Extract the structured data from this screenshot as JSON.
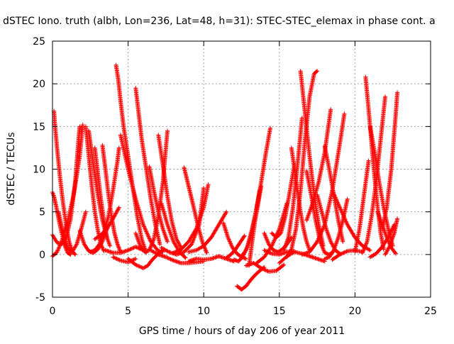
{
  "chart_data": {
    "type": "scatter",
    "title": "dSTEC Iono. truth (albh, Lon=236, Lat=48, h=31): STEC-STEC_elemax in phase cont. a",
    "xlabel": "GPS time / hours of day 206 of year 2011",
    "ylabel": "dSTEC  / TECUs",
    "xlim": [
      0,
      25
    ],
    "ylim": [
      -5,
      25
    ],
    "xticks": [
      0,
      5,
      10,
      15,
      20,
      25
    ],
    "yticks": [
      -5,
      0,
      5,
      10,
      15,
      20,
      25
    ],
    "grid": true,
    "marker": "+",
    "series_color": "#ff0000",
    "segments": [
      {
        "x": [
          0.0,
          0.1,
          0.25,
          0.4,
          0.6,
          0.8,
          1.0,
          1.2
        ],
        "y": [
          7.3,
          6.8,
          5.6,
          4.2,
          2.6,
          1.1,
          0.2,
          0.0
        ]
      },
      {
        "x": [
          0.0,
          0.3,
          0.6,
          0.9,
          1.2,
          1.5,
          1.7,
          1.8
        ],
        "y": [
          2.3,
          1.4,
          1.2,
          2.0,
          4.2,
          8.5,
          13.0,
          15.0
        ]
      },
      {
        "x": [
          0.1,
          0.15,
          0.3,
          0.5,
          0.7,
          0.9,
          1.1,
          1.3,
          1.5
        ],
        "y": [
          16.8,
          15.5,
          12.5,
          9.0,
          6.0,
          3.5,
          1.5,
          0.4,
          0.0
        ]
      },
      {
        "x": [
          0.0,
          0.3,
          0.6,
          1.0,
          1.4,
          1.8,
          2.0
        ],
        "y": [
          -0.2,
          0.3,
          1.5,
          3.8,
          7.0,
          11.5,
          15.2
        ]
      },
      {
        "x": [
          0.4,
          0.7,
          1.0,
          1.3,
          1.6,
          1.9,
          2.2
        ],
        "y": [
          5.0,
          2.5,
          0.8,
          0.3,
          1.2,
          3.0,
          5.0
        ]
      },
      {
        "x": [
          2.2,
          2.4,
          2.6,
          2.8,
          3.0,
          3.2,
          3.4
        ],
        "y": [
          15.0,
          11.5,
          8.0,
          5.0,
          2.8,
          1.2,
          0.4
        ]
      },
      {
        "x": [
          2.4,
          2.7,
          3.0,
          3.3,
          3.6,
          3.8
        ],
        "y": [
          14.5,
          10.5,
          7.0,
          4.0,
          2.0,
          1.0
        ]
      },
      {
        "x": [
          1.8,
          2.1,
          2.4,
          2.7,
          3.0,
          3.3,
          3.6
        ],
        "y": [
          2.8,
          1.2,
          0.4,
          0.2,
          0.6,
          1.5,
          3.0
        ]
      },
      {
        "x": [
          2.8,
          3.0,
          3.2,
          3.4,
          3.6
        ],
        "y": [
          12.5,
          9.5,
          6.5,
          4.0,
          2.0
        ]
      },
      {
        "x": [
          2.5,
          2.8,
          3.1,
          3.4,
          3.7,
          4.0,
          4.3,
          4.4
        ],
        "y": [
          0.3,
          0.5,
          1.2,
          2.5,
          4.5,
          7.5,
          11.0,
          12.5
        ]
      },
      {
        "x": [
          2.8,
          3.2,
          3.6,
          4.0,
          4.4
        ],
        "y": [
          1.8,
          2.3,
          3.0,
          4.2,
          5.5
        ]
      },
      {
        "x": [
          3.3,
          3.5,
          3.7,
          3.9,
          4.1,
          4.3,
          4.5
        ],
        "y": [
          12.8,
          10.0,
          7.0,
          4.5,
          2.5,
          1.2,
          0.3
        ]
      },
      {
        "x": [
          3.5,
          4.0,
          4.5,
          5.0,
          5.5,
          6.0
        ],
        "y": [
          0.5,
          0.2,
          0.2,
          0.5,
          0.9,
          0.5
        ]
      },
      {
        "x": [
          4.2,
          4.35,
          4.5,
          4.7,
          5.0,
          5.3,
          5.6,
          5.9,
          6.2
        ],
        "y": [
          22.2,
          20.5,
          18.0,
          15.0,
          11.5,
          8.0,
          4.5,
          1.8,
          0.2
        ]
      },
      {
        "x": [
          4.5,
          5.0,
          5.5,
          6.0,
          6.5,
          7.0,
          7.3
        ],
        "y": [
          14.0,
          10.0,
          6.5,
          3.5,
          1.5,
          0.4,
          0.3
        ]
      },
      {
        "x": [
          4.0,
          4.5,
          5.0,
          5.5
        ],
        "y": [
          -0.3,
          -0.7,
          -0.9,
          -0.5
        ]
      },
      {
        "x": [
          5.5,
          5.7,
          5.9,
          6.2,
          6.5,
          6.8,
          7.1
        ],
        "y": [
          19.5,
          16.5,
          13.5,
          10.0,
          6.5,
          3.5,
          1.2
        ]
      },
      {
        "x": [
          5.0,
          5.5,
          6.0,
          6.3,
          6.6,
          7.0,
          7.3
        ],
        "y": [
          -0.5,
          -1.2,
          -1.6,
          -1.3,
          -0.6,
          0.1,
          0.5
        ]
      },
      {
        "x": [
          5.5,
          5.8,
          6.1,
          6.4,
          6.7,
          7.0,
          7.3,
          7.6
        ],
        "y": [
          2.5,
          1.0,
          0.3,
          0.5,
          1.8,
          4.5,
          8.5,
          14.5
        ]
      },
      {
        "x": [
          6.4,
          6.7,
          7.0,
          7.3,
          7.6
        ],
        "y": [
          10.3,
          7.5,
          5.0,
          3.0,
          1.5
        ]
      },
      {
        "x": [
          7.0,
          7.3,
          7.6,
          7.9,
          8.2,
          8.5
        ],
        "y": [
          14.0,
          10.5,
          6.8,
          3.8,
          1.8,
          0.8
        ]
      },
      {
        "x": [
          7.2,
          7.6,
          8.0,
          8.4,
          8.8
        ],
        "y": [
          6.0,
          3.5,
          1.5,
          0.3,
          -0.4
        ]
      },
      {
        "x": [
          6.5,
          7.0,
          7.5,
          8.0,
          8.5,
          9.0,
          9.5,
          10.0
        ],
        "y": [
          0.5,
          0.0,
          -0.3,
          -0.7,
          -1.0,
          -1.0,
          -0.9,
          -0.8
        ]
      },
      {
        "x": [
          7.2,
          7.7,
          8.2,
          8.7,
          9.2,
          9.7,
          10.0
        ],
        "y": [
          0.8,
          0.3,
          0.0,
          0.3,
          1.2,
          3.5,
          7.8
        ]
      },
      {
        "x": [
          8.7,
          9.0,
          9.3,
          9.6,
          9.9,
          10.2
        ],
        "y": [
          10.2,
          8.0,
          5.8,
          3.5,
          1.5,
          0.2
        ]
      },
      {
        "x": [
          8.0,
          8.5,
          9.0,
          9.5,
          10.0,
          10.3
        ],
        "y": [
          0.2,
          0.6,
          1.5,
          3.0,
          5.5,
          8.2
        ]
      },
      {
        "x": [
          9.0,
          9.5,
          10.0,
          10.5,
          11.0,
          11.5
        ],
        "y": [
          0.3,
          0.5,
          1.0,
          2.0,
          3.5,
          5.0
        ]
      },
      {
        "x": [
          9.0,
          9.5,
          10.0,
          10.5,
          11.0,
          11.5,
          12.0
        ],
        "y": [
          -0.8,
          -0.5,
          -0.6,
          -0.5,
          -0.2,
          -0.5,
          -0.8
        ]
      },
      {
        "x": [
          11.5,
          11.8,
          12.1,
          12.4,
          12.7
        ],
        "y": [
          -0.4,
          0.0,
          0.6,
          1.4,
          2.2
        ]
      },
      {
        "x": [
          11.3,
          11.6,
          11.9,
          12.2,
          12.5,
          12.8
        ],
        "y": [
          3.7,
          2.0,
          0.8,
          0.1,
          -0.3,
          -0.5
        ]
      },
      {
        "x": [
          12.0,
          12.3,
          12.6,
          12.9,
          13.2,
          13.5,
          13.8,
          14.1,
          14.4
        ],
        "y": [
          -0.6,
          -0.8,
          -0.2,
          1.0,
          3.0,
          5.5,
          8.5,
          11.8,
          14.8
        ]
      },
      {
        "x": [
          12.5,
          12.8,
          13.1,
          13.4,
          13.7
        ],
        "y": [
          -0.2,
          0.5,
          2.0,
          4.5,
          7.5
        ]
      },
      {
        "x": [
          12.2,
          12.5,
          12.8,
          13.1,
          13.4,
          13.7,
          14.0
        ],
        "y": [
          -3.7,
          -4.1,
          -3.7,
          -3.0,
          -2.4,
          -1.9,
          -1.5
        ]
      },
      {
        "x": [
          12.8,
          13.3,
          13.8,
          14.3,
          14.8,
          15.3
        ],
        "y": [
          -1.3,
          -1.0,
          -1.6,
          -2.0,
          -1.9,
          -1.2
        ]
      },
      {
        "x": [
          13.0,
          13.2,
          13.4,
          13.6,
          13.8
        ],
        "y": [
          -1.3,
          1.5,
          4.0,
          6.0,
          8.0
        ]
      },
      {
        "x": [
          13.5,
          14.0,
          14.5,
          15.0,
          15.5
        ],
        "y": [
          -1.0,
          -0.3,
          1.0,
          3.0,
          6.0
        ]
      },
      {
        "x": [
          14.0,
          14.3,
          14.6,
          14.9,
          15.2,
          15.5,
          15.8
        ],
        "y": [
          2.5,
          1.2,
          0.5,
          0.3,
          0.6,
          1.2,
          2.0
        ]
      },
      {
        "x": [
          14.5,
          14.8,
          15.1,
          15.4,
          15.7,
          16.0
        ],
        "y": [
          2.5,
          2.0,
          2.5,
          4.5,
          7.5,
          10.5
        ]
      },
      {
        "x": [
          15.0,
          15.5,
          16.0,
          16.5,
          17.0,
          17.5,
          18.0
        ],
        "y": [
          -1.0,
          -0.2,
          0.3,
          0.1,
          -0.2,
          -0.5,
          -0.8
        ]
      },
      {
        "x": [
          14.0,
          14.5,
          15.0,
          15.5,
          16.0
        ],
        "y": [
          0.5,
          0.1,
          0.0,
          0.3,
          0.4
        ]
      },
      {
        "x": [
          15.3,
          15.6,
          15.9,
          16.2,
          16.5
        ],
        "y": [
          0.5,
          2.0,
          5.5,
          10.5,
          16.0
        ]
      },
      {
        "x": [
          15.5,
          15.8,
          16.1,
          16.4,
          16.7,
          17.0,
          17.3,
          17.5
        ],
        "y": [
          -0.3,
          0.6,
          3.0,
          7.5,
          13.5,
          18.5,
          21.2,
          21.5
        ]
      },
      {
        "x": [
          15.8,
          16.0,
          16.2,
          16.4,
          16.6,
          16.8,
          17.0
        ],
        "y": [
          12.5,
          10.0,
          7.5,
          5.0,
          3.0,
          1.5,
          0.5
        ]
      },
      {
        "x": [
          16.4,
          16.7,
          17.0,
          17.3,
          17.6,
          17.9
        ],
        "y": [
          21.5,
          16.5,
          11.5,
          7.0,
          3.5,
          1.0
        ]
      },
      {
        "x": [
          16.5,
          17.0,
          17.5,
          18.0,
          18.5,
          19.0,
          19.3
        ],
        "y": [
          0.0,
          0.3,
          1.5,
          3.5,
          7.5,
          13.0,
          16.5
        ]
      },
      {
        "x": [
          16.8,
          17.1,
          17.4,
          17.7,
          18.0,
          18.3,
          18.5
        ],
        "y": [
          9.8,
          7.0,
          4.0,
          1.5,
          0.2,
          0.0,
          0.2
        ]
      },
      {
        "x": [
          16.8,
          17.2,
          17.6,
          18.0,
          18.4
        ],
        "y": [
          4.0,
          6.0,
          8.5,
          12.0,
          17.0
        ]
      },
      {
        "x": [
          17.5,
          17.8,
          18.1,
          18.4,
          18.7,
          19.0
        ],
        "y": [
          7.0,
          5.0,
          3.0,
          1.5,
          0.5,
          0.1
        ]
      },
      {
        "x": [
          18.0,
          18.3,
          18.6,
          18.9,
          19.2
        ],
        "y": [
          12.7,
          10.0,
          7.0,
          4.0,
          1.5
        ]
      },
      {
        "x": [
          18.0,
          18.3,
          18.6,
          18.9,
          19.2,
          19.5
        ],
        "y": [
          -0.5,
          -0.3,
          0.5,
          2.0,
          4.0,
          6.5
        ]
      },
      {
        "x": [
          18.5,
          19.0,
          19.5,
          20.0,
          20.5,
          21.0
        ],
        "y": [
          7.5,
          5.5,
          3.5,
          2.0,
          1.0,
          0.5
        ]
      },
      {
        "x": [
          18.5,
          19.0,
          19.5,
          20.0,
          20.5
        ],
        "y": [
          -0.6,
          0.0,
          0.4,
          0.5,
          0.3
        ]
      },
      {
        "x": [
          20.0,
          20.3,
          20.6,
          20.9
        ],
        "y": [
          0.3,
          3.0,
          7.0,
          11.0
        ]
      },
      {
        "x": [
          20.7,
          20.9,
          21.1,
          21.3,
          21.5,
          21.7,
          21.9
        ],
        "y": [
          20.8,
          17.0,
          13.0,
          9.0,
          5.5,
          2.5,
          0.6
        ]
      },
      {
        "x": [
          20.5,
          20.8,
          21.1,
          21.4,
          21.7,
          22.0
        ],
        "y": [
          0.2,
          1.5,
          4.5,
          8.5,
          13.5,
          18.5
        ]
      },
      {
        "x": [
          21.0,
          21.3,
          21.6,
          21.9,
          22.2,
          22.5
        ],
        "y": [
          15.0,
          12.0,
          8.5,
          5.5,
          3.0,
          1.0
        ]
      },
      {
        "x": [
          21.0,
          21.4,
          21.8,
          22.2,
          22.6
        ],
        "y": [
          -0.3,
          0.1,
          0.9,
          2.0,
          3.5
        ]
      },
      {
        "x": [
          21.5,
          21.8,
          22.1,
          22.4,
          22.7
        ],
        "y": [
          5.0,
          3.5,
          2.0,
          0.8,
          0.1
        ]
      },
      {
        "x": [
          21.8,
          22.1,
          22.4,
          22.7,
          22.8
        ],
        "y": [
          3.0,
          5.5,
          10.0,
          16.5,
          19.0
        ]
      },
      {
        "x": [
          22.0,
          22.3,
          22.6,
          22.8
        ],
        "y": [
          0.0,
          1.0,
          2.5,
          4.2
        ]
      }
    ]
  }
}
